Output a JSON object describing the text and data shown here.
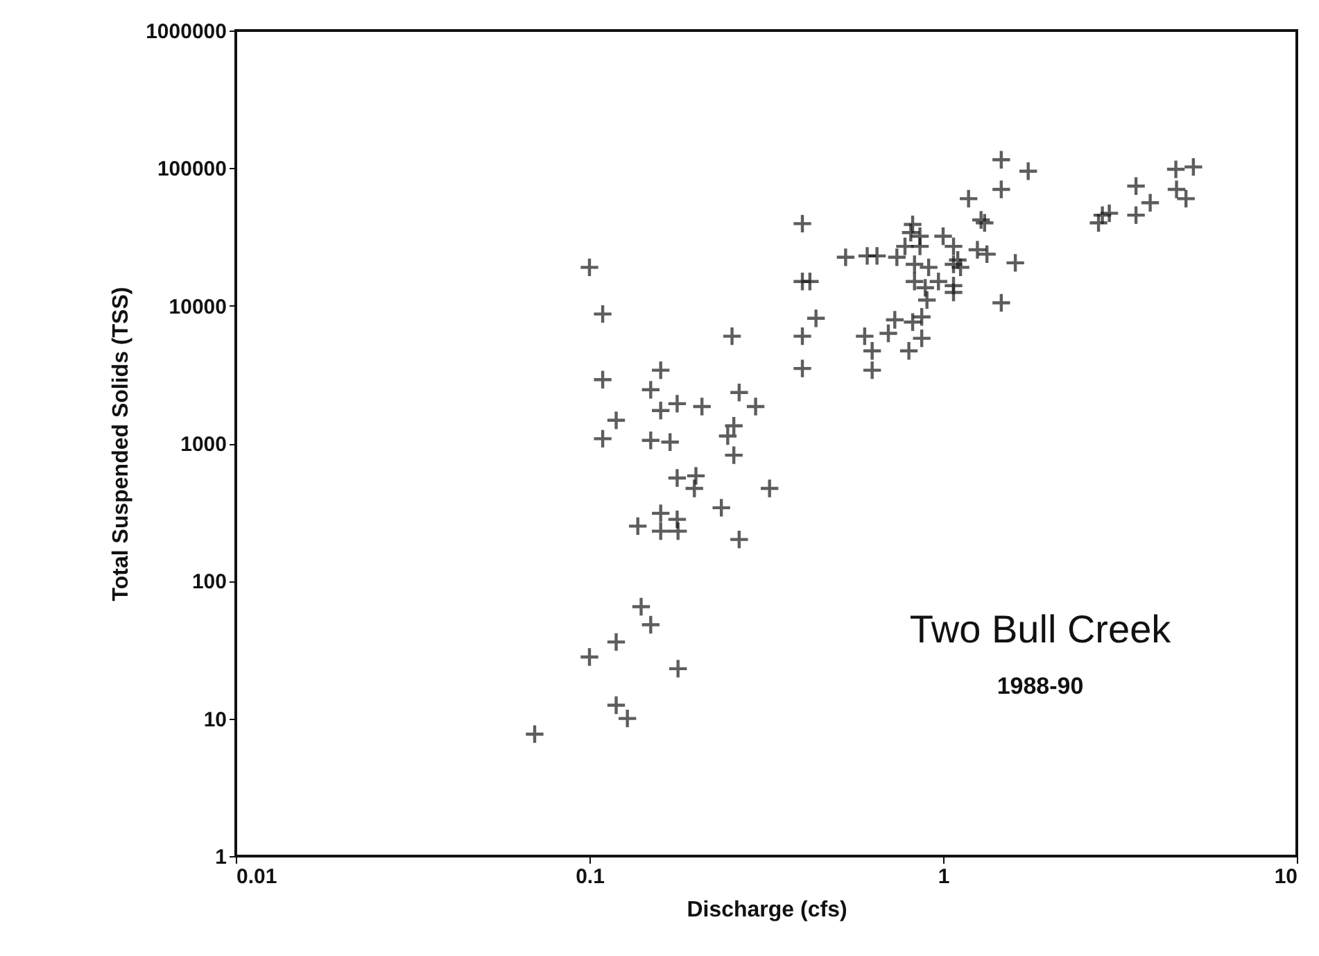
{
  "chart_data": {
    "type": "scatter",
    "xlabel": "Discharge (cfs)",
    "ylabel": "Total Suspended Solids (TSS)",
    "log": "xy",
    "grid": false,
    "marker": "cross",
    "xlim": [
      0.01,
      10
    ],
    "xticks": [
      0.01,
      0.1,
      1,
      10
    ],
    "ylim": [
      1,
      1000000
    ],
    "yticks": [
      1,
      10,
      100,
      1000,
      10000,
      100000,
      1000000
    ],
    "annotations": [
      "Two Bull Creek",
      "1988-90"
    ],
    "series": [
      {
        "color": "#1a1a1a",
        "x": [
          0.4,
          0.1,
          0.4,
          0.42,
          0.109,
          0.437,
          0.253,
          0.4,
          0.4,
          0.159,
          0.109,
          0.149,
          0.265,
          0.177,
          0.159,
          0.208,
          0.295,
          0.119,
          0.109,
          0.149,
          0.169,
          0.256,
          0.246,
          0.256,
          0.177,
          0.2,
          0.198,
          0.323,
          0.236,
          0.159,
          0.177,
          0.137,
          0.159,
          0.178,
          0.265,
          0.14,
          0.149,
          0.119,
          0.1,
          0.178,
          0.119,
          0.128,
          0.07,
          1.46,
          1.74,
          1.46,
          1.18,
          1.28,
          1.31,
          1.6,
          1.46,
          1.33,
          1.25,
          0.53,
          0.61,
          0.65,
          0.82,
          0.81,
          1.0,
          1.07,
          0.78,
          0.86,
          0.74,
          0.83,
          0.91,
          1.07,
          1.12,
          0.83,
          0.97,
          1.07,
          0.89,
          1.1,
          0.9,
          1.07,
          0.86,
          0.87,
          0.82,
          0.73,
          0.6,
          0.7,
          0.87,
          0.63,
          0.8,
          0.63,
          2.82,
          2.75,
          2.95,
          3.51,
          3.51,
          4.57,
          3.85,
          4.86,
          4.55,
          5.1
        ],
        "values": [
          39500,
          19000,
          15000,
          15000,
          8700,
          8100,
          6000,
          6000,
          3500,
          3400,
          2900,
          2450,
          2340,
          1940,
          1730,
          1850,
          1850,
          1470,
          1080,
          1050,
          1020,
          1340,
          1130,
          820,
          560,
          580,
          470,
          470,
          340,
          310,
          280,
          250,
          230,
          230,
          200,
          65,
          48,
          36,
          28,
          23,
          12.5,
          10,
          7.7,
          115000,
          95000,
          70000,
          60000,
          42000,
          40000,
          20500,
          10500,
          23700,
          25500,
          22500,
          23000,
          23000,
          39000,
          34000,
          32000,
          27000,
          27000,
          27000,
          22500,
          20000,
          19000,
          20000,
          19000,
          15000,
          15000,
          14000,
          13500,
          21500,
          11000,
          12500,
          32000,
          8300,
          7600,
          7900,
          6000,
          6300,
          5800,
          4700,
          4700,
          3400,
          45500,
          40000,
          47000,
          45500,
          74000,
          70000,
          56000,
          60000,
          98000,
          102000
        ]
      }
    ]
  }
}
